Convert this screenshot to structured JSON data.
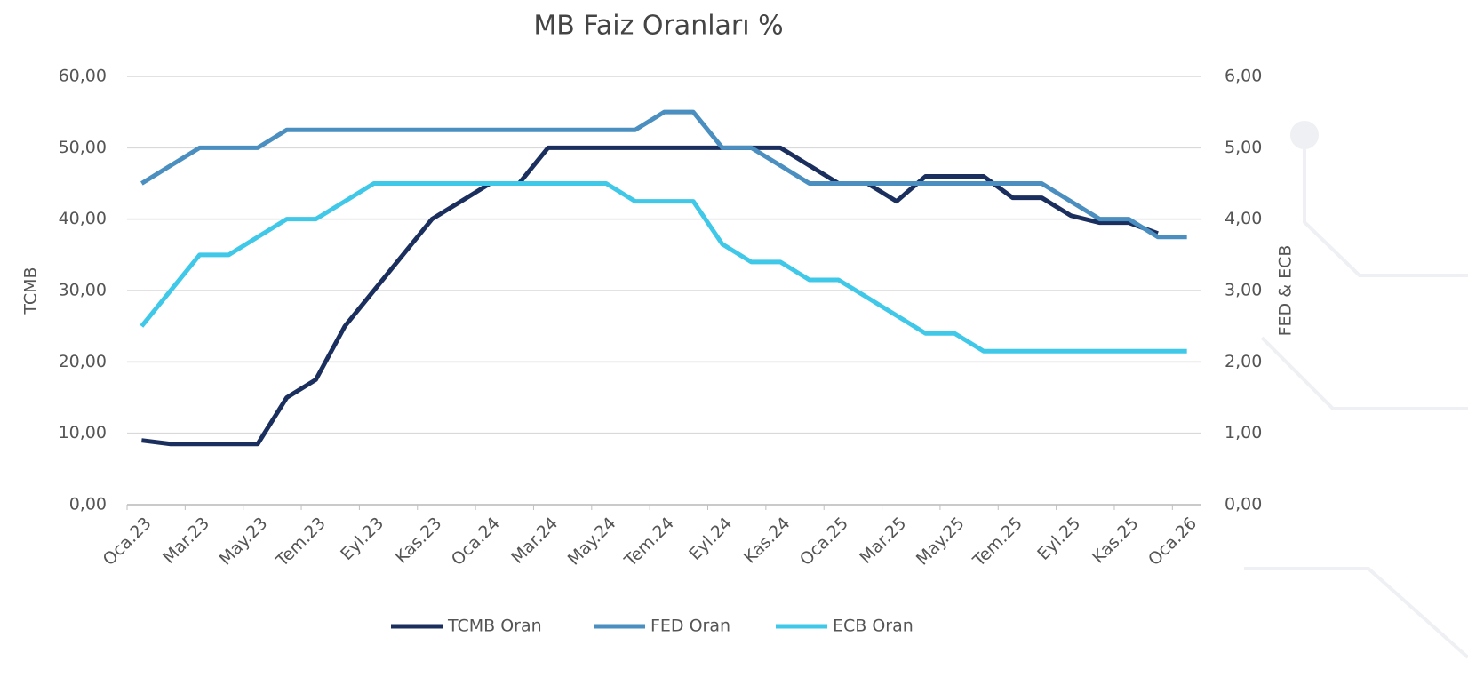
{
  "chart_data": {
    "type": "line",
    "title": "MB Faiz Oranları %",
    "y_label": "TCMB",
    "y2_label": "FED & ECB",
    "categories": [
      "Oca.23",
      null,
      "Mar.23",
      null,
      "May.23",
      null,
      "Tem.23",
      null,
      "Eyl.23",
      null,
      "Kas.23",
      null,
      "Oca.24",
      null,
      "Mar.24",
      null,
      "May.24",
      null,
      "Tem.24",
      null,
      "Eyl.24",
      null,
      "Kas.24",
      null,
      "Oca.25",
      null,
      "Mar.25",
      null,
      "May.25",
      null,
      "Tem.25",
      null,
      "Eyl.25",
      null,
      "Kas.25",
      null,
      "Oca.26"
    ],
    "series": [
      {
        "name": "TCMB Oran",
        "color": "#1b2f5e",
        "axis": "y",
        "values": [
          9,
          8.5,
          8.5,
          8.5,
          8.5,
          15,
          17.5,
          25,
          30,
          35,
          40,
          42.5,
          45,
          45,
          50,
          50,
          50,
          50,
          50,
          50,
          50,
          50,
          50,
          47.5,
          45,
          45,
          42.5,
          46,
          46,
          46,
          43,
          43,
          40.5,
          39.5,
          39.5,
          38,
          null
        ]
      },
      {
        "name": "FED Oran",
        "color": "#4a8fc0",
        "axis": "y2",
        "values": [
          4.5,
          4.75,
          5,
          5,
          5,
          5.25,
          5.25,
          5.25,
          5.25,
          5.25,
          5.25,
          5.25,
          5.25,
          5.25,
          5.25,
          5.25,
          5.25,
          5.25,
          5.5,
          5.5,
          5,
          5,
          4.75,
          4.5,
          4.5,
          4.5,
          4.5,
          4.5,
          4.5,
          4.5,
          4.5,
          4.5,
          4.25,
          4,
          4,
          3.75,
          3.75
        ]
      },
      {
        "name": "ECB Oran",
        "color": "#3fc8e8",
        "axis": "y2",
        "values": [
          2.5,
          3,
          3.5,
          3.5,
          3.75,
          4,
          4,
          4.25,
          4.5,
          4.5,
          4.5,
          4.5,
          4.5,
          4.5,
          4.5,
          4.5,
          4.5,
          4.25,
          4.25,
          4.25,
          3.65,
          3.4,
          3.4,
          3.15,
          3.15,
          2.9,
          2.65,
          2.4,
          2.4,
          2.15,
          2.15,
          2.15,
          2.15,
          2.15,
          2.15,
          2.15,
          2.15
        ]
      }
    ],
    "ylim": [
      0,
      60
    ],
    "yticks": [
      {
        "value": 0,
        "label": "0,00"
      },
      {
        "value": 10,
        "label": "10,00"
      },
      {
        "value": 20,
        "label": "20,00"
      },
      {
        "value": 30,
        "label": "30,00"
      },
      {
        "value": 40,
        "label": "40,00"
      },
      {
        "value": 50,
        "label": "50,00"
      },
      {
        "value": 60,
        "label": "60,00"
      }
    ],
    "y2lim": [
      0,
      6
    ],
    "y2ticks": [
      {
        "value": 0,
        "label": "0,00"
      },
      {
        "value": 1,
        "label": "1,00"
      },
      {
        "value": 2,
        "label": "2,00"
      },
      {
        "value": 3,
        "label": "3,00"
      },
      {
        "value": 4,
        "label": "4,00"
      },
      {
        "value": 5,
        "label": "5,00"
      },
      {
        "value": 6,
        "label": "6,00"
      }
    ],
    "grid": true,
    "legend": "bottom"
  }
}
